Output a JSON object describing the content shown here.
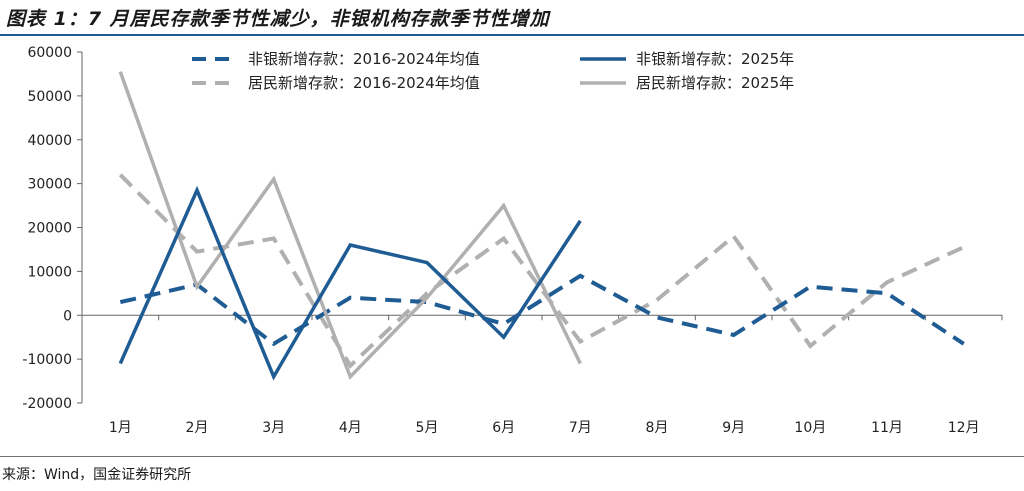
{
  "title": "图表 1：7 月居民存款季节性减少，非银机构存款季节性增加",
  "source": "来源：Wind，国金证券研究所",
  "chart_data": {
    "type": "line",
    "categories": [
      "1月",
      "2月",
      "3月",
      "4月",
      "5月",
      "6月",
      "7月",
      "8月",
      "9月",
      "10月",
      "11月",
      "12月"
    ],
    "ylim": [
      -20000,
      60000
    ],
    "yticks": [
      -20000,
      -10000,
      0,
      10000,
      20000,
      30000,
      40000,
      50000,
      60000
    ],
    "grid": false,
    "legend_position": "top",
    "series": [
      {
        "name": "非银新增存款：2016-2024年均值",
        "color": "#1f5c93",
        "style": "dashed",
        "values": [
          3000,
          7000,
          -6500,
          4000,
          3000,
          -2000,
          9000,
          -500,
          -4500,
          6500,
          5000,
          -6500
        ]
      },
      {
        "name": "非银新增存款：2025年",
        "color": "#1f5c93",
        "style": "solid",
        "values": [
          -11000,
          28500,
          -14000,
          16000,
          12000,
          -5000,
          21500,
          null,
          null,
          null,
          null,
          null
        ]
      },
      {
        "name": "居民新增存款：2016-2024年均值",
        "color": "#b0b0b0",
        "style": "dashed",
        "values": [
          32000,
          14500,
          17500,
          -11500,
          5000,
          17500,
          -6000,
          3500,
          18000,
          -7000,
          7500,
          15500
        ]
      },
      {
        "name": "居民新增存款：2025年",
        "color": "#b0b0b0",
        "style": "solid",
        "values": [
          55500,
          6500,
          31000,
          -14000,
          4000,
          25000,
          -11000,
          null,
          null,
          null,
          null,
          null
        ]
      }
    ]
  }
}
